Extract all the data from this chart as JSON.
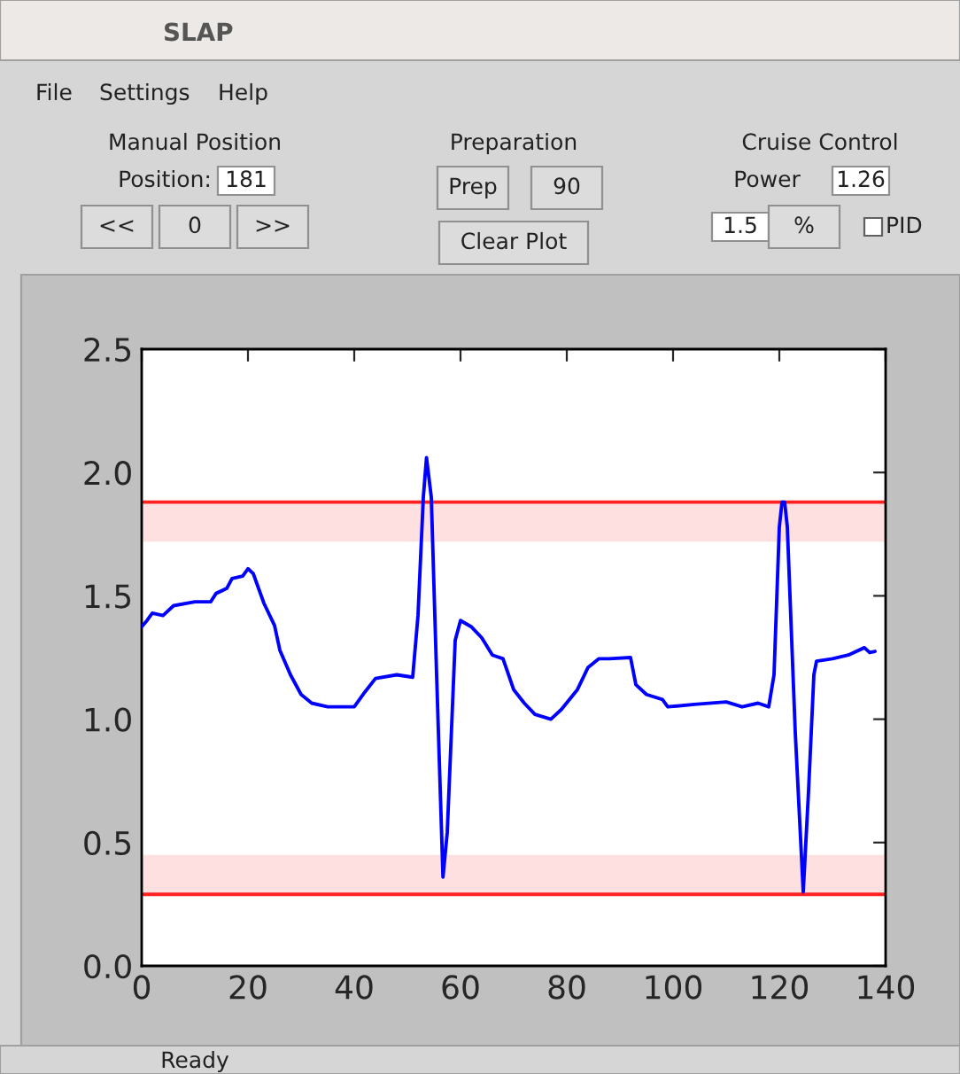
{
  "chart_data": {
    "type": "line",
    "title": "SLAP",
    "x": [
      0,
      1,
      2,
      4,
      6,
      10,
      13,
      14,
      16,
      17,
      19,
      20,
      21,
      23,
      25,
      26,
      28,
      30,
      32,
      35,
      40,
      42,
      44,
      48,
      51,
      52,
      53,
      53.6,
      54.5,
      55.5,
      56.7,
      57.5,
      58.5,
      59,
      60,
      62,
      64,
      66,
      68,
      70,
      72,
      74,
      77,
      79,
      82,
      84,
      86,
      88,
      92,
      93,
      95,
      98,
      99,
      104,
      110,
      113,
      116,
      118,
      119,
      120,
      120.5,
      121,
      121.5,
      123,
      124.5,
      125.5,
      126.5,
      127,
      130,
      133,
      136,
      137,
      138
    ],
    "series": [
      {
        "color": "#0000ff",
        "values": [
          1.375,
          1.4,
          1.43,
          1.42,
          1.46,
          1.476,
          1.476,
          1.51,
          1.53,
          1.57,
          1.58,
          1.61,
          1.59,
          1.47,
          1.38,
          1.28,
          1.18,
          1.1,
          1.065,
          1.05,
          1.05,
          1.11,
          1.165,
          1.18,
          1.17,
          1.42,
          1.9,
          2.06,
          1.9,
          1.18,
          0.36,
          0.54,
          1.06,
          1.32,
          1.4,
          1.375,
          1.33,
          1.26,
          1.245,
          1.12,
          1.065,
          1.02,
          1.0,
          1.04,
          1.12,
          1.21,
          1.245,
          1.245,
          1.25,
          1.14,
          1.1,
          1.08,
          1.05,
          1.06,
          1.07,
          1.05,
          1.065,
          1.05,
          1.18,
          1.78,
          1.88,
          1.88,
          1.78,
          0.945,
          0.3,
          0.71,
          1.18,
          1.235,
          1.245,
          1.26,
          1.29,
          1.27,
          1.275
        ]
      }
    ],
    "xlim": [
      0,
      140
    ],
    "xticks": [
      0,
      20,
      40,
      60,
      80,
      100,
      120,
      140
    ],
    "ylim": [
      0,
      2.5
    ],
    "yticks": [
      {
        "value": 0,
        "label": "0.0"
      },
      {
        "value": 0.5,
        "label": "0.5"
      },
      {
        "value": 1.0,
        "label": "1.0"
      },
      {
        "value": 1.5,
        "label": "1.5"
      },
      {
        "value": 2.0,
        "label": "2.0"
      },
      {
        "value": 2.5,
        "label": "2.5"
      }
    ],
    "ref_lines": [
      {
        "axis": "y",
        "value": 1.88,
        "color": "#ff2020"
      },
      {
        "axis": "y",
        "value": 0.29,
        "color": "#ff2020"
      }
    ],
    "bands": [
      {
        "axis": "y",
        "from": 1.72,
        "to": 1.88,
        "color": "#ffe0e0"
      },
      {
        "axis": "y",
        "from": 0.29,
        "to": 0.45,
        "color": "#ffe0e0"
      }
    ],
    "grid": false,
    "legend": false,
    "marker": "none",
    "line_style": "solid",
    "annotations": [
      "File",
      "Settings",
      "Help",
      "Manual Position",
      "Position:",
      "181",
      "<<",
      "0",
      ">>",
      "Preparation",
      "Prep",
      "90",
      "Clear Plot",
      "Cruise Control",
      "Power",
      "1.26",
      "1.5",
      "%",
      "PID",
      "Ready"
    ]
  }
}
